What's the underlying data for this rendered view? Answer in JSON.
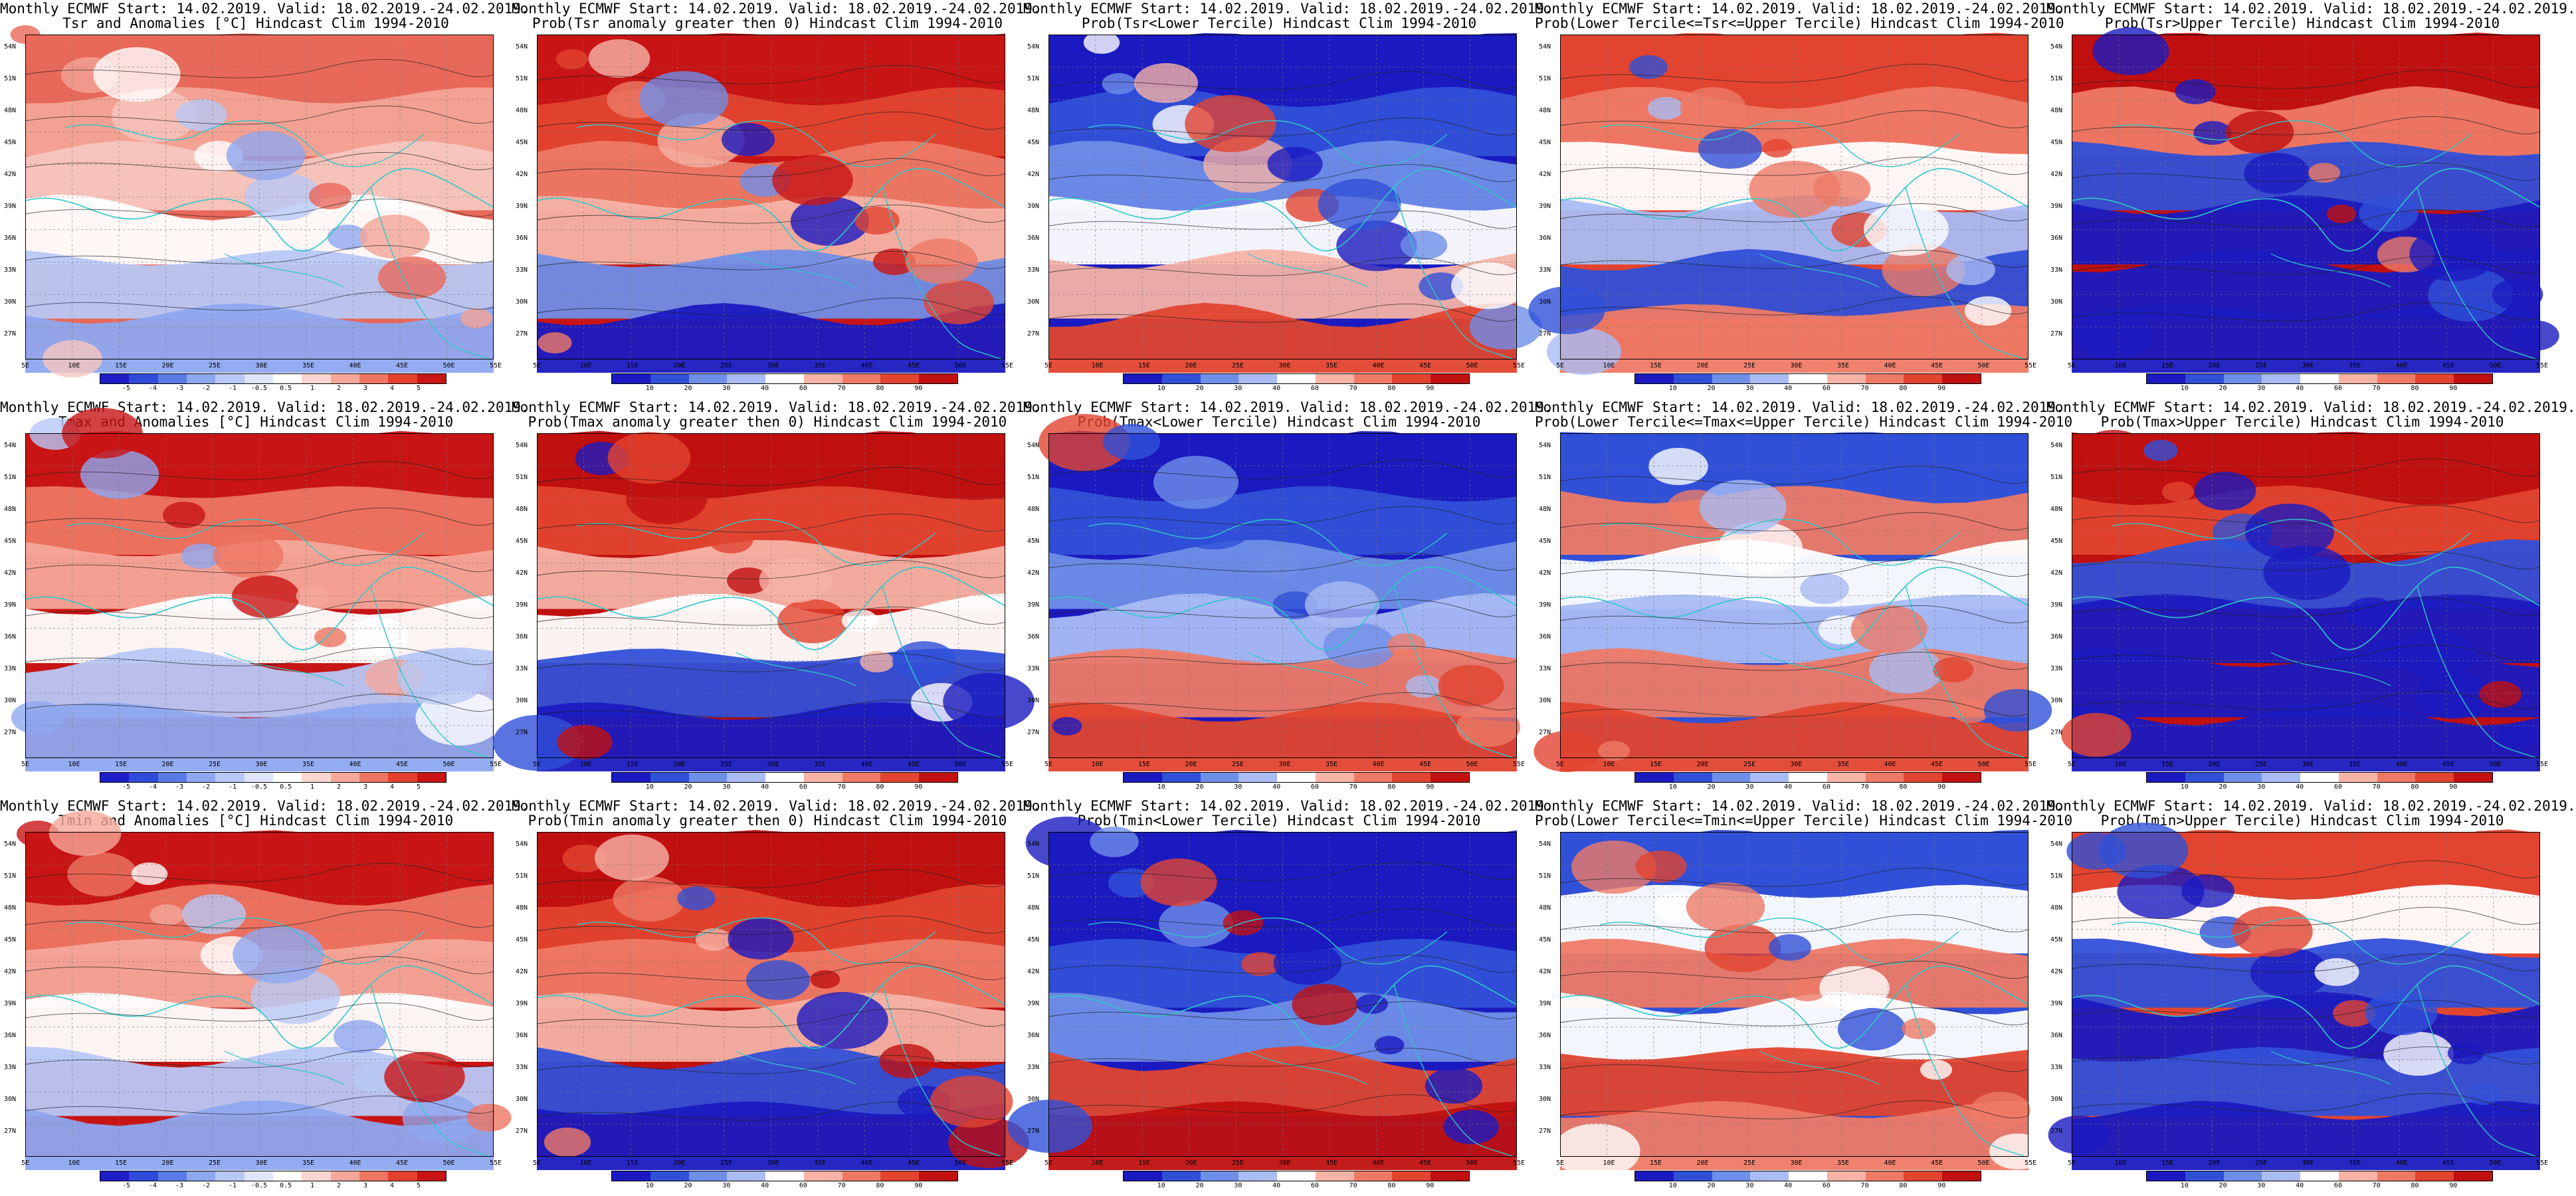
{
  "panels": [
    {
      "line1": "Monthly ECMWF Start: 14.02.2019. Valid: 18.02.2019.-24.02.2019.",
      "line2": "Tsr and Anomalies [°C] Hindcast Clim 1994-2010",
      "kind": "anom",
      "ticks": [
        "-5",
        "-4",
        "-3",
        "-2",
        "-1",
        "-0.5",
        "0.5",
        "1",
        "2",
        "3",
        "4",
        "5"
      ]
    },
    {
      "line1": "Monthly ECMWF Start: 14.02.2019. Valid: 18.02.2019.-24.02.2019.",
      "line2": "Prob(Tsr anomaly greater then 0) Hindcast Clim 1994-2010",
      "kind": "prob",
      "ticks": [
        "10",
        "20",
        "30",
        "40",
        "60",
        "70",
        "80",
        "90"
      ]
    },
    {
      "line1": "Monthly ECMWF Start: 14.02.2019. Valid: 18.02.2019.-24.02.2019.",
      "line2": "Prob(Tsr<Lower Tercile) Hindcast Clim 1994-2010",
      "kind": "prob",
      "ticks": [
        "10",
        "20",
        "30",
        "40",
        "60",
        "70",
        "80",
        "90"
      ]
    },
    {
      "line1": "Monthly ECMWF Start: 14.02.2019. Valid: 18.02.2019.-24.02.2019.",
      "line2": "Prob(Lower Tercile<=Tsr<=Upper Tercile) Hindcast Clim 1994-2010",
      "kind": "prob",
      "ticks": [
        "10",
        "20",
        "30",
        "40",
        "60",
        "70",
        "80",
        "90"
      ]
    },
    {
      "line1": "Monthly ECMWF Start: 14.02.2019. Valid: 18.02.2019.-24.02.2019.",
      "line2": "Prob(Tsr>Upper Tercile) Hindcast Clim 1994-2010",
      "kind": "prob",
      "ticks": [
        "10",
        "20",
        "30",
        "40",
        "60",
        "70",
        "80",
        "90"
      ]
    },
    {
      "line1": "Monthly ECMWF Start: 14.02.2019. Valid: 18.02.2019.-24.02.2019.",
      "line2": "Tmax and Anomalies [°C] Hindcast Clim 1994-2010",
      "kind": "anom",
      "ticks": [
        "-5",
        "-4",
        "-3",
        "-2",
        "-1",
        "-0.5",
        "0.5",
        "1",
        "2",
        "3",
        "4",
        "5"
      ]
    },
    {
      "line1": "Monthly ECMWF Start: 14.02.2019. Valid: 18.02.2019.-24.02.2019.",
      "line2": "Prob(Tmax anomaly greater then 0) Hindcast Clim 1994-2010",
      "kind": "prob",
      "ticks": [
        "10",
        "20",
        "30",
        "40",
        "60",
        "70",
        "80",
        "90"
      ]
    },
    {
      "line1": "Monthly ECMWF Start: 14.02.2019. Valid: 18.02.2019.-24.02.2019.",
      "line2": "Prob(Tmax<Lower Tercile) Hindcast Clim 1994-2010",
      "kind": "prob",
      "ticks": [
        "10",
        "20",
        "30",
        "40",
        "60",
        "70",
        "80",
        "90"
      ]
    },
    {
      "line1": "Monthly ECMWF Start: 14.02.2019. Valid: 18.02.2019.-24.02.2019.",
      "line2": "Prob(Lower Tercile<=Tmax<=Upper Tercile) Hindcast Clim 1994-2010",
      "kind": "prob",
      "ticks": [
        "10",
        "20",
        "30",
        "40",
        "60",
        "70",
        "80",
        "90"
      ]
    },
    {
      "line1": "Monthly ECMWF Start: 14.02.2019. Valid: 18.02.2019.-24.02.2019.",
      "line2": "Prob(Tmax>Upper Tercile) Hindcast Clim 1994-2010",
      "kind": "prob",
      "ticks": [
        "10",
        "20",
        "30",
        "40",
        "60",
        "70",
        "80",
        "90"
      ]
    },
    {
      "line1": "Monthly ECMWF Start: 14.02.2019. Valid: 18.02.2019.-24.02.2019.",
      "line2": "Tmin and Anomalies [°C] Hindcast Clim 1994-2010",
      "kind": "anom",
      "ticks": [
        "-5",
        "-4",
        "-3",
        "-2",
        "-1",
        "-0.5",
        "0.5",
        "1",
        "2",
        "3",
        "4",
        "5"
      ]
    },
    {
      "line1": "Monthly ECMWF Start: 14.02.2019. Valid: 18.02.2019.-24.02.2019.",
      "line2": "Prob(Tmin anomaly greater then 0) Hindcast Clim 1994-2010",
      "kind": "prob",
      "ticks": [
        "10",
        "20",
        "30",
        "40",
        "60",
        "70",
        "80",
        "90"
      ]
    },
    {
      "line1": "Monthly ECMWF Start: 14.02.2019. Valid: 18.02.2019.-24.02.2019.",
      "line2": "Prob(Tmin<Lower Tercile) Hindcast Clim 1994-2010",
      "kind": "prob",
      "ticks": [
        "10",
        "20",
        "30",
        "40",
        "60",
        "70",
        "80",
        "90"
      ]
    },
    {
      "line1": "Monthly ECMWF Start: 14.02.2019. Valid: 18.02.2019.-24.02.2019.",
      "line2": "Prob(Lower Tercile<=Tmin<=Upper Tercile) Hindcast Clim 1994-2010",
      "kind": "prob",
      "ticks": [
        "10",
        "20",
        "30",
        "40",
        "60",
        "70",
        "80",
        "90"
      ]
    },
    {
      "line1": "Monthly ECMWF Start: 14.02.2019. Valid: 18.02.2019.-24.02.2019.",
      "line2": "Prob(Tmin>Upper Tercile) Hindcast Clim 1994-2010",
      "kind": "prob",
      "ticks": [
        "10",
        "20",
        "30",
        "40",
        "60",
        "70",
        "80",
        "90"
      ]
    }
  ],
  "lat_labels": [
    "54N",
    "51N",
    "48N",
    "45N",
    "42N",
    "39N",
    "36N",
    "33N",
    "30N",
    "27N"
  ],
  "lon_labels": [
    "5E",
    "10E",
    "15E",
    "20E",
    "25E",
    "30E",
    "35E",
    "40E",
    "45E",
    "50E",
    "55E"
  ],
  "colors": {
    "anom": [
      "#1e1ec8",
      "#2f4bd8",
      "#5a7ae6",
      "#8ea8f0",
      "#b8c8f6",
      "#dfe6fb",
      "#ffffff",
      "#fbd6d0",
      "#f5a89a",
      "#ee7562",
      "#e3412e",
      "#c81414"
    ],
    "prob": [
      "#1a1ac0",
      "#3050d8",
      "#6f8ee8",
      "#a9bcf4",
      "#ffffff",
      "#f6b3a6",
      "#ee7a66",
      "#e2442f",
      "#c01010"
    ],
    "coast": "#2ec8c8",
    "contour": "#202020"
  }
}
